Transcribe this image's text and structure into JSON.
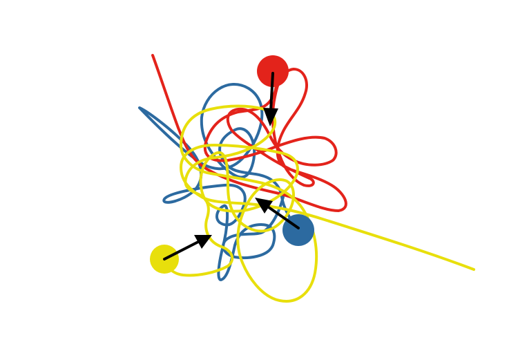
{
  "puzzle": {
    "type": "tangled-strings",
    "strings": [
      {
        "id": "red",
        "color": "#e3231b",
        "anchor": "red-ball",
        "direction": "down"
      },
      {
        "id": "blue",
        "color": "#2c6aa0",
        "anchor": "blue-ball",
        "direction": "up-left"
      },
      {
        "id": "yellow",
        "color": "#e8df0c",
        "anchor": "yellow-ball",
        "direction": "up-right"
      }
    ],
    "arrow_color": "#000000",
    "background": "#ffffff"
  }
}
